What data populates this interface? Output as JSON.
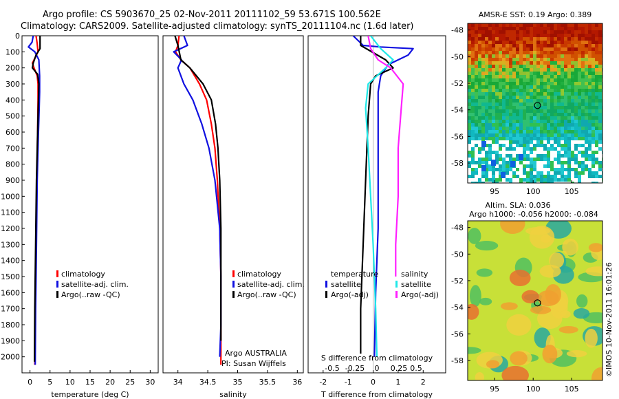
{
  "header": {
    "line1": "Argo profile: CS 5903670_25 02-Nov-2011 20111102_59 53.671S 100.562E",
    "line2": "Climatology: CARS2009. Satellite-adjusted climatology: synTS_20111104.nc (1.6d later)"
  },
  "colors": {
    "climatology": "#ff0000",
    "satellite": "#1010e0",
    "argo": "#000000",
    "satellite_salinity": "#20e8e8",
    "argo_salinity": "#ff20ff"
  },
  "legends": {
    "temperature": [
      "climatology",
      "satellite-adj. clim.",
      "Argo(..raw -QC)"
    ],
    "salinity": [
      "climatology",
      "satellite-adj. clim.",
      "Argo(..raw -QC)"
    ],
    "diff_temperature_title": "temperature",
    "diff_salinity_title": "salinity",
    "diff_temperature": [
      "satellite",
      "Argo(-adj)"
    ],
    "diff_salinity": [
      "satellite",
      "Argo(-adj)"
    ]
  },
  "annotations": {
    "argo_country": "Argo AUSTRALIA",
    "pi": "PI: Susan Wijffels",
    "s_diff_label": "S difference from climatology",
    "s_diff_ticks": [
      "-0.5",
      "-0.25",
      "0",
      "0.25",
      "0.5"
    ]
  },
  "chart_data": [
    {
      "type": "line",
      "xlabel": "temperature (deg C)",
      "xticks": [
        "0",
        "5",
        "10",
        "15",
        "20",
        "25",
        "30"
      ],
      "xlim": [
        -2,
        32
      ],
      "ylim": [
        2100,
        0
      ],
      "yticks": [
        "0",
        "100",
        "200",
        "300",
        "400",
        "500",
        "600",
        "700",
        "800",
        "900",
        "1000",
        "1100",
        "1200",
        "1300",
        "1400",
        "1500",
        "1600",
        "1700",
        "1800",
        "1900",
        "2000"
      ],
      "series": [
        {
          "name": "climatology",
          "x": [
            1.5,
            1.8,
            2.0,
            0.6,
            1.0,
            1.8,
            2.0,
            2.0,
            1.9,
            1.7,
            1.5,
            1.3,
            1.2
          ],
          "y": [
            0,
            50,
            100,
            170,
            200,
            250,
            300,
            400,
            600,
            900,
            1300,
            1700,
            2050
          ]
        },
        {
          "name": "satellite-adj. clim.",
          "x": [
            0.8,
            0.5,
            -0.4,
            1.2,
            2.2,
            2.4,
            2.4,
            2.3,
            2.1,
            1.8,
            1.6,
            1.4,
            1.3
          ],
          "y": [
            0,
            40,
            70,
            100,
            150,
            250,
            350,
            450,
            600,
            900,
            1300,
            1700,
            2050
          ]
        },
        {
          "name": "Argo(..raw -QC)",
          "x": [
            2.5,
            2.5,
            1.5,
            0.8,
            0.6,
            1.9,
            2.2,
            2.1,
            1.9,
            1.6,
            1.4,
            1.2,
            1.1
          ],
          "y": [
            0,
            80,
            120,
            170,
            200,
            240,
            300,
            400,
            600,
            900,
            1300,
            1700,
            2030
          ]
        }
      ]
    },
    {
      "type": "line",
      "xlabel": "salinity",
      "xticks": [
        "34",
        "34.5",
        "35",
        "35.5",
        "36"
      ],
      "xlim": [
        33.75,
        36.1
      ],
      "ylim": [
        2100,
        0
      ],
      "series": [
        {
          "name": "climatology",
          "x": [
            34.02,
            34.0,
            33.96,
            34.05,
            34.2,
            34.36,
            34.48,
            34.56,
            34.62,
            34.66,
            34.7,
            34.72,
            34.72,
            34.72
          ],
          "y": [
            0,
            60,
            100,
            150,
            200,
            300,
            400,
            550,
            700,
            900,
            1200,
            1500,
            1800,
            2050
          ]
        },
        {
          "name": "satellite-adj. clim.",
          "x": [
            34.1,
            34.16,
            33.93,
            34.06,
            34.0,
            34.1,
            34.25,
            34.4,
            34.52,
            34.62,
            34.7,
            34.72,
            34.72,
            34.7
          ],
          "y": [
            0,
            60,
            100,
            150,
            200,
            300,
            400,
            550,
            700,
            900,
            1200,
            1500,
            1800,
            2000
          ]
        },
        {
          "name": "Argo(..raw -QC)",
          "x": [
            33.95,
            34.0,
            34.05,
            34.2,
            34.42,
            34.56,
            34.63,
            34.67,
            34.7,
            34.72,
            34.72,
            34.72
          ],
          "y": [
            0,
            60,
            150,
            200,
            300,
            400,
            550,
            700,
            900,
            1200,
            1500,
            1900
          ]
        }
      ]
    },
    {
      "type": "line",
      "xlabel": "T difference from climatology",
      "xticks": [
        "-2",
        "-1",
        "0",
        "1",
        "2"
      ],
      "xlim": [
        -2.6,
        2.9
      ],
      "ylim": [
        2100,
        0
      ],
      "series": [
        {
          "name": "temperature satellite",
          "x": [
            -0.8,
            -0.4,
            0.3,
            1.6,
            1.4,
            0.6,
            0.3,
            0.2,
            0.2,
            0.2,
            0.2,
            0.1,
            0.05
          ],
          "y": [
            0,
            60,
            70,
            80,
            120,
            180,
            250,
            350,
            500,
            800,
            1200,
            1600,
            2000
          ]
        },
        {
          "name": "temperature Argo(-adj)",
          "x": [
            -0.5,
            -0.5,
            0.5,
            0.8,
            0.1,
            -0.1,
            -0.2,
            -0.3,
            -0.4,
            -0.5,
            -0.5
          ],
          "y": [
            0,
            60,
            150,
            200,
            250,
            300,
            500,
            900,
            1300,
            1700,
            1980
          ]
        },
        {
          "name": "salinity satellite",
          "x": [
            -0.1,
            0.3,
            0.8,
            0.5,
            -0.2,
            -0.3,
            -0.2,
            -0.1,
            0.0,
            0.1,
            0.15
          ],
          "y": [
            0,
            80,
            150,
            200,
            300,
            450,
            700,
            1000,
            1300,
            1700,
            2000
          ]
        },
        {
          "name": "salinity Argo(-adj)",
          "x": [
            -0.2,
            -0.1,
            0.2,
            0.7,
            1.2,
            1.1,
            1.0,
            1.0,
            0.9,
            0.9
          ],
          "y": [
            0,
            80,
            150,
            200,
            300,
            500,
            700,
            1000,
            1300,
            1500
          ]
        }
      ]
    },
    {
      "type": "heatmap",
      "title": "AMSR-E SST: 0.19 Argo: 0.389",
      "yticks": [
        "-48",
        "-50",
        "-52",
        "-54",
        "-56",
        "-58"
      ],
      "xticks": [
        "95",
        "100",
        "105"
      ],
      "ylim": [
        -59.5,
        -47.5
      ],
      "xlim": [
        91.5,
        109
      ],
      "marker": {
        "lon": 100.562,
        "lat": -53.671
      }
    },
    {
      "type": "heatmap",
      "title": "Altim. SLA: 0.036",
      "subtitle": "Argo h1000: -0.056 h2000: -0.084",
      "yticks": [
        "-48",
        "-50",
        "-52",
        "-54",
        "-56",
        "-58"
      ],
      "xticks": [
        "95",
        "100",
        "105"
      ],
      "ylim": [
        -59.5,
        -47.5
      ],
      "xlim": [
        91.5,
        109
      ],
      "marker": {
        "lon": 100.562,
        "lat": -53.671
      },
      "credit": "©IMOS 10-Nov-2011 16:01:26"
    }
  ]
}
